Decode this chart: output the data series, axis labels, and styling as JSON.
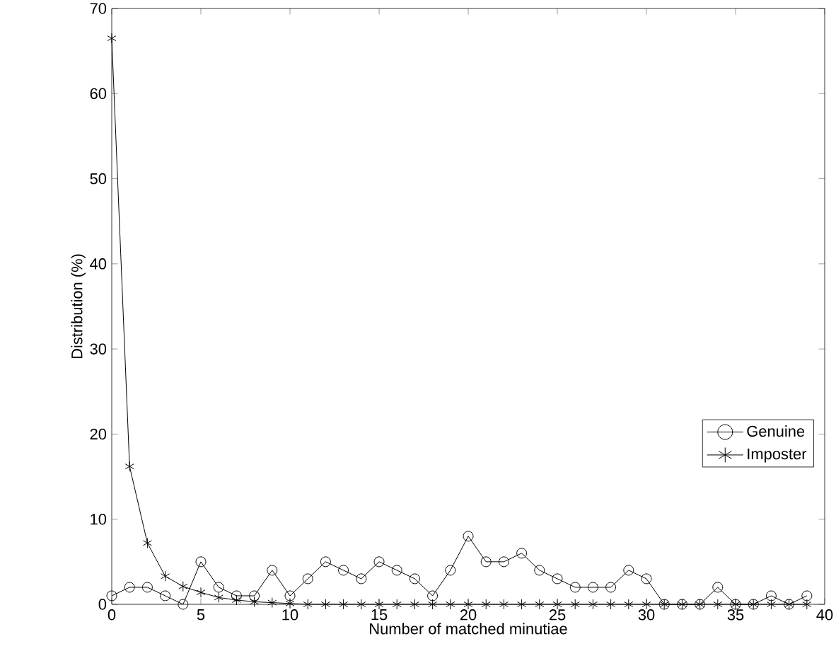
{
  "chart_data": {
    "type": "line",
    "xlabel": "Number of matched minutiae",
    "ylabel": "Distribution (%)",
    "x": [
      0,
      1,
      2,
      3,
      4,
      5,
      6,
      7,
      8,
      9,
      10,
      11,
      12,
      13,
      14,
      15,
      16,
      17,
      18,
      19,
      20,
      21,
      22,
      23,
      24,
      25,
      26,
      27,
      28,
      29,
      30,
      31,
      32,
      33,
      34,
      35,
      36,
      37,
      38,
      39
    ],
    "series": [
      {
        "name": "Genuine",
        "color": "#000000",
        "marker": "circle",
        "values": [
          1,
          2,
          2,
          1,
          0,
          5,
          2,
          1,
          1,
          4,
          1,
          3,
          5,
          4,
          3,
          5,
          4,
          3,
          1,
          4,
          8,
          5,
          5,
          6,
          4,
          3,
          2,
          2,
          2,
          4,
          3,
          0,
          0,
          0,
          2,
          0,
          0,
          1,
          0,
          1
        ]
      },
      {
        "name": "Imposter",
        "color": "#000000",
        "marker": "cross",
        "values": [
          66.5,
          16.2,
          7.2,
          3.3,
          2.1,
          1.4,
          0.8,
          0.5,
          0.3,
          0.2,
          0.1,
          0,
          0,
          0,
          0,
          0,
          0,
          0,
          0,
          0,
          0,
          0,
          0,
          0,
          0,
          0,
          0,
          0,
          0,
          0,
          0,
          0,
          0,
          0,
          0,
          0,
          0,
          0,
          0,
          0
        ]
      }
    ],
    "xlim": [
      0,
      40
    ],
    "ylim": [
      0,
      70
    ],
    "xticks": [
      0,
      5,
      10,
      15,
      20,
      25,
      30,
      35,
      40
    ],
    "yticks": [
      0,
      10,
      20,
      30,
      40,
      50,
      60,
      70
    ],
    "grid": false,
    "legend": "bottom right",
    "line_style": "solid"
  }
}
